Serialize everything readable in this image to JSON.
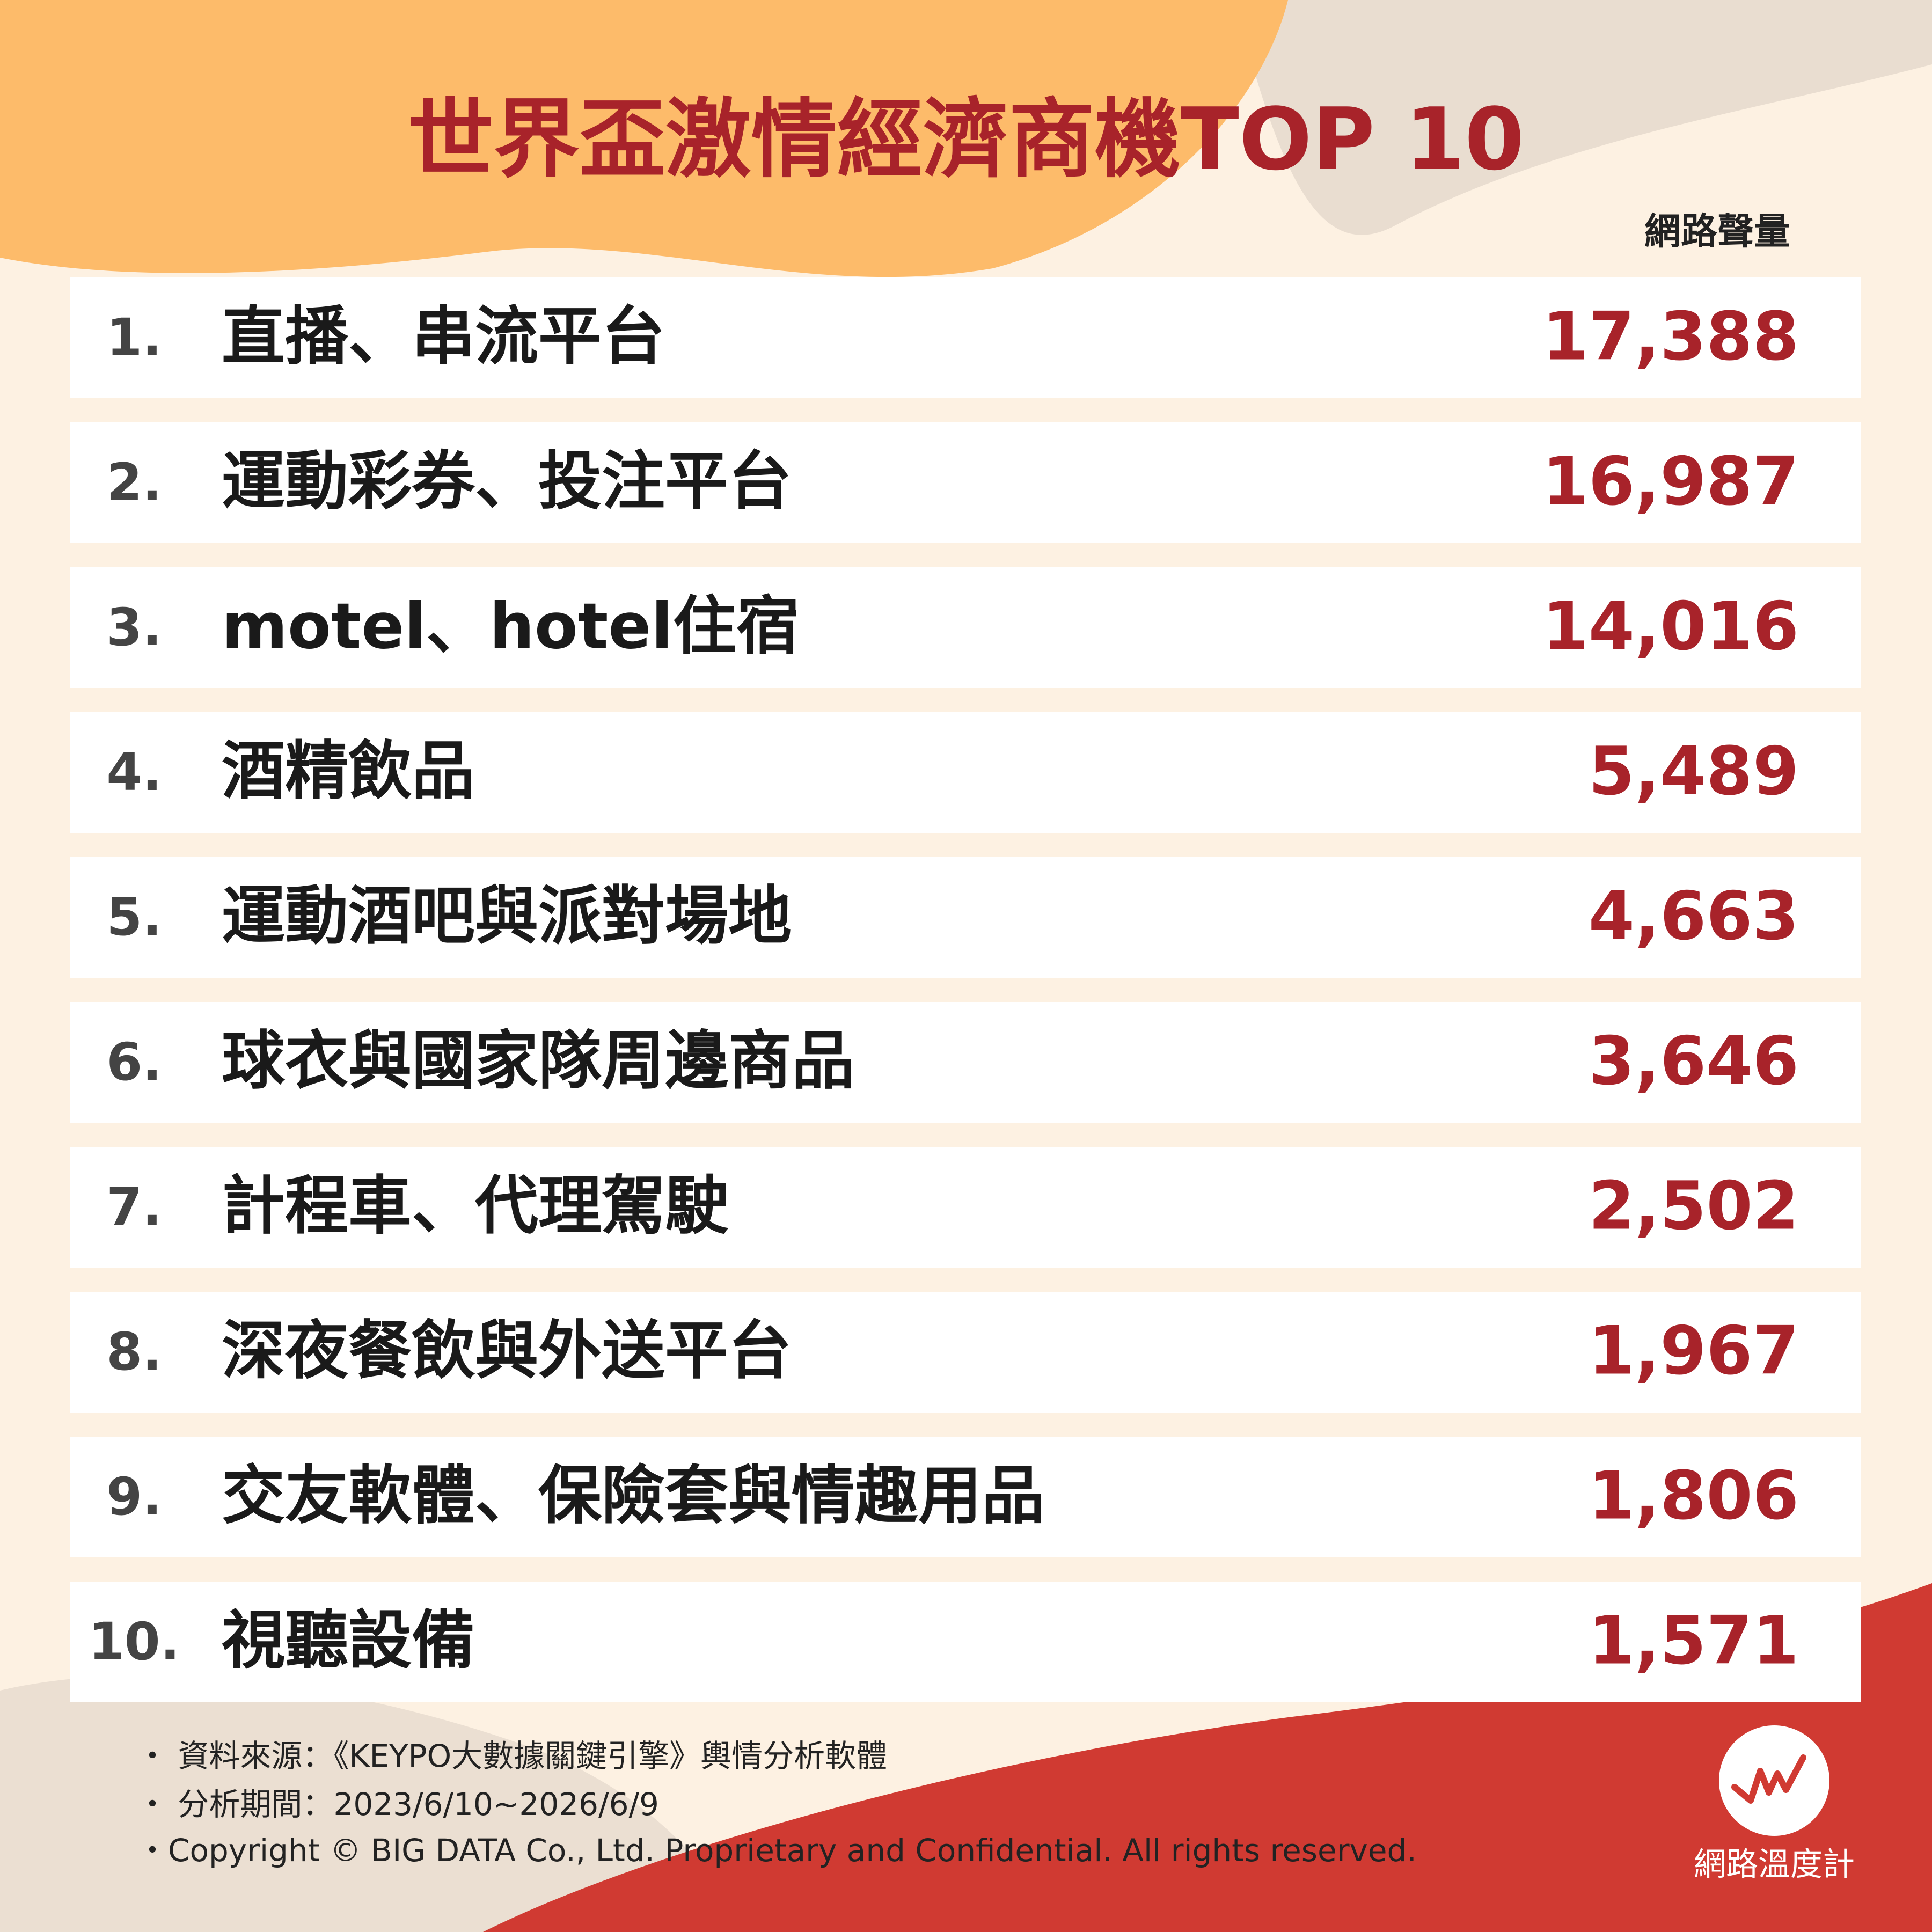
{
  "header": {
    "title": "世界盃激情經濟商機TOP 10",
    "column_label": "網路聲量"
  },
  "table": {
    "rows": [
      [
        "1.",
        "直播、串流平台",
        "17,388"
      ],
      [
        "2.",
        "運動彩券、投注平台",
        "16,987"
      ],
      [
        "3.",
        "motel、hotel住宿",
        "14,016"
      ],
      [
        "4.",
        "酒精飲品",
        "5,489"
      ],
      [
        "5.",
        "運動酒吧與派對場地",
        "4,663"
      ],
      [
        "6.",
        "球衣與國家隊周邊商品",
        "3,646"
      ],
      [
        "7.",
        "計程車、代理駕駛",
        "2,502"
      ],
      [
        "8.",
        "深夜餐飲與外送平台",
        "1,967"
      ],
      [
        "9.",
        "交友軟體、保險套與情趣用品",
        "1,806"
      ],
      [
        "10.",
        "視聽設備",
        "1,571"
      ]
    ]
  },
  "footer": {
    "notes": [
      "・ 資料來源：《KEYPO大數據關鍵引擎》輿情分析軟體",
      "・ 分析期間：2023/6/10~2026/6/9",
      "・Copyright © BIG DATA Co., Ltd. Proprietary and Confidential. All rights reserved."
    ],
    "logo_text": "網路溫度計"
  }
}
